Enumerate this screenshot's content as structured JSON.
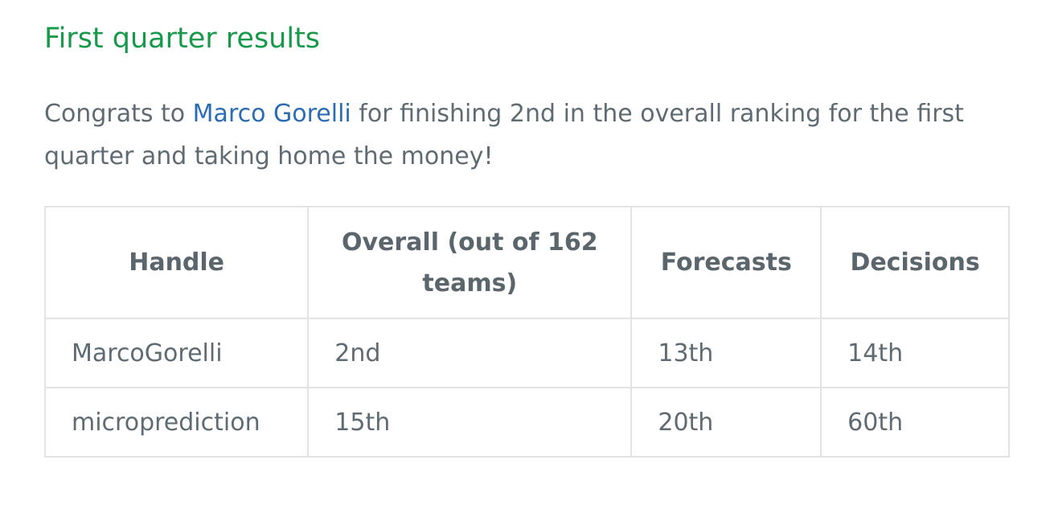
{
  "heading": "First quarter results",
  "intro": {
    "before_link": "Congrats to ",
    "link_text": "Marco Gorelli",
    "after_link": " for finishing 2nd in the overall ranking for the first quarter and taking home the money!"
  },
  "table": {
    "headers": {
      "handle": "Handle",
      "overall": "Overall (out of 162 teams)",
      "forecasts": "Forecasts",
      "decisions": "Decisions"
    },
    "rows": [
      {
        "handle": "MarcoGorelli",
        "overall": "2nd",
        "forecasts": "13th",
        "decisions": "14th"
      },
      {
        "handle": "microprediction",
        "overall": "15th",
        "forecasts": "20th",
        "decisions": "60th"
      }
    ]
  },
  "colors": {
    "heading": "#17994a",
    "link": "#2a6db5",
    "text": "#5f6b72",
    "border": "#e3e3e3"
  }
}
